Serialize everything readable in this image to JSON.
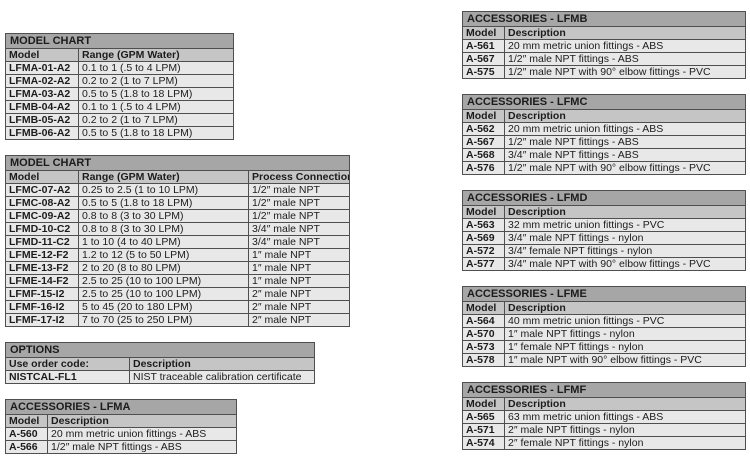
{
  "page": {
    "background": "#ffffff"
  },
  "colors": {
    "title_bar_bg": "#a6a6a6",
    "header_row_bg": "#c5c5c5",
    "body_row_bg": "#e8e8e8",
    "border": "#4f4f4f",
    "text": "#1c1c1c"
  },
  "left_tables": [
    {
      "title": "MODEL CHART",
      "columns": [
        "Model",
        "Range (GPM Water)"
      ],
      "rows": [
        [
          "LFMA-01-A2",
          "0.1 to 1 (.5 to 4 LPM)"
        ],
        [
          "LFMA-02-A2",
          "0.2 to 2 (1 to 7 LPM)"
        ],
        [
          "LFMA-03-A2",
          "0.5 to 5 (1.8 to 18 LPM)"
        ],
        [
          "LFMB-04-A2",
          "0.1 to 1 (.5 to 4 LPM)"
        ],
        [
          "LFMB-05-A2",
          "0.2 to 2 (1 to 7 LPM)"
        ],
        [
          "LFMB-06-A2",
          "0.5 to 5 (1.8 to 18 LPM)"
        ]
      ]
    },
    {
      "title": "MODEL CHART",
      "columns": [
        "Model",
        "Range (GPM Water)",
        "Process Connection"
      ],
      "rows": [
        [
          "LFMC-07-A2",
          "0.25 to 2.5 (1 to 10 LPM)",
          "1/2″ male NPT"
        ],
        [
          "LFMC-08-A2",
          "0.5 to 5 (1.8 to 18 LPM)",
          "1/2″ male NPT"
        ],
        [
          "LFMC-09-A2",
          "0.8 to 8 (3 to 30 LPM)",
          "1/2″ male NPT"
        ],
        [
          "LFMD-10-C2",
          "0.8 to 8 (3 to 30 LPM)",
          "3/4″ male NPT"
        ],
        [
          "LFMD-11-C2",
          "1 to 10 (4 to 40 LPM)",
          "3/4″ male NPT"
        ],
        [
          "LFME-12-F2",
          "1.2 to 12 (5 to 50 LPM)",
          "1″ male NPT"
        ],
        [
          "LFME-13-F2",
          "2 to 20 (8 to 80 LPM)",
          "1″ male NPT"
        ],
        [
          "LFME-14-F2",
          "2.5 to 25 (10 to 100 LPM)",
          "1″ male NPT"
        ],
        [
          "LFMF-15-I2",
          "2.5 to 25 (10 to 100 LPM)",
          "2″ male NPT"
        ],
        [
          "LFMF-16-I2",
          "5 to 45 (20 to 180 LPM)",
          "2″ male NPT"
        ],
        [
          "LFMF-17-I2",
          "7 to 70 (25 to 250 LPM)",
          "2″ male NPT"
        ]
      ]
    },
    {
      "title": "OPTIONS",
      "columns": [
        "Use order code:",
        "Description"
      ],
      "rows": [
        [
          "NISTCAL-FL1",
          "NIST traceable calibration certificate"
        ]
      ]
    },
    {
      "title": "ACCESSORIES - LFMA",
      "columns": [
        "Model",
        "Description"
      ],
      "rows": [
        [
          "A-560",
          "20 mm metric union fittings - ABS"
        ],
        [
          "A-566",
          "1/2″ male NPT fittings - ABS"
        ]
      ]
    }
  ],
  "right_tables": [
    {
      "title": "ACCESSORIES - LFMB",
      "columns": [
        "Model",
        "Description"
      ],
      "rows": [
        [
          "A-561",
          "20 mm metric union fittings - ABS"
        ],
        [
          "A-567",
          "1/2″ male NPT fittings - ABS"
        ],
        [
          "A-575",
          "1/2″ male NPT with 90° elbow fittings - PVC"
        ]
      ]
    },
    {
      "title": "ACCESSORIES - LFMC",
      "columns": [
        "Model",
        "Description"
      ],
      "rows": [
        [
          "A-562",
          "20 mm metric union fittings - ABS"
        ],
        [
          "A-567",
          "1/2″ male NPT fittings - ABS"
        ],
        [
          "A-568",
          "3/4″ male NPT fittings - ABS"
        ],
        [
          "A-576",
          "1/2″ male NPT with 90° elbow fittings - PVC"
        ]
      ]
    },
    {
      "title": "ACCESSORIES - LFMD",
      "columns": [
        "Model",
        "Description"
      ],
      "rows": [
        [
          "A-563",
          "32 mm metric union fittings - PVC"
        ],
        [
          "A-569",
          "3/4″ male NPT fittings - nylon"
        ],
        [
          "A-572",
          "3/4″ female NPT fittings - nylon"
        ],
        [
          "A-577",
          "3/4″ male NPT with 90° elbow fittings - PVC"
        ]
      ]
    },
    {
      "title": "ACCESSORIES - LFME",
      "columns": [
        "Model",
        "Description"
      ],
      "rows": [
        [
          "A-564",
          "40 mm metric union fittings - PVC"
        ],
        [
          "A-570",
          "1″ male NPT fittings - nylon"
        ],
        [
          "A-573",
          "1″ female NPT fittings - nylon"
        ],
        [
          "A-578",
          "1″ male NPT with 90° elbow fittings - PVC"
        ]
      ]
    },
    {
      "title": "ACCESSORIES - LFMF",
      "columns": [
        "Model",
        "Description"
      ],
      "rows": [
        [
          "A-565",
          "63 mm metric union fittings - ABS"
        ],
        [
          "A-571",
          "2″ male NPT fittings - nylon"
        ],
        [
          "A-574",
          "2″ female NPT fittings - nylon"
        ]
      ]
    }
  ]
}
